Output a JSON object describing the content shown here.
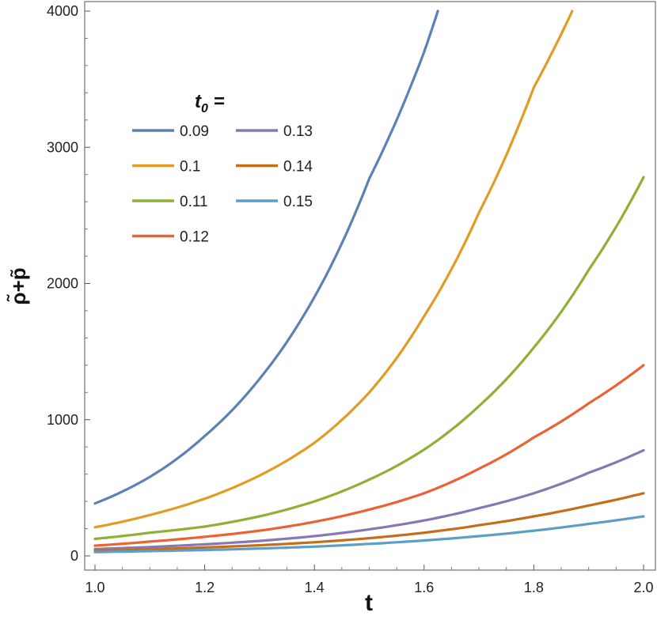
{
  "chart_data": {
    "type": "line",
    "xlabel": "t",
    "ylabel": "ρ̃+p̃",
    "xlim": [
      1.0,
      2.0
    ],
    "ylim": [
      0,
      4000
    ],
    "xticks": [
      "1.0",
      "1.2",
      "1.4",
      "1.6",
      "1.8",
      "2.0"
    ],
    "yticks": [
      "0",
      "1000",
      "2000",
      "3000",
      "4000"
    ],
    "grid": false,
    "legend": {
      "title": "t",
      "title_sub": "0",
      "title_suffix": " =",
      "placement": "upper-left",
      "columns": 2
    },
    "series": [
      {
        "name": "0.09",
        "color": "#5e81b5",
        "x": [
          1.0,
          1.1,
          1.2,
          1.3,
          1.4,
          1.5,
          1.6,
          1.625
        ],
        "y": [
          385,
          580,
          880,
          1300,
          1900,
          2770,
          3700,
          4000
        ]
      },
      {
        "name": "0.1",
        "color": "#e19c24",
        "x": [
          1.0,
          1.1,
          1.2,
          1.3,
          1.4,
          1.5,
          1.6,
          1.7,
          1.8,
          1.87
        ],
        "y": [
          210,
          300,
          420,
          590,
          830,
          1200,
          1760,
          2520,
          3440,
          4000
        ]
      },
      {
        "name": "0.11",
        "color": "#8fb032",
        "x": [
          1.0,
          1.1,
          1.2,
          1.3,
          1.4,
          1.5,
          1.6,
          1.7,
          1.8,
          1.9,
          2.0
        ],
        "y": [
          125,
          170,
          215,
          290,
          400,
          560,
          780,
          1100,
          1530,
          2100,
          2780
        ]
      },
      {
        "name": "0.12",
        "color": "#eb6235",
        "x": [
          1.0,
          1.1,
          1.2,
          1.3,
          1.4,
          1.5,
          1.6,
          1.7,
          1.8,
          1.9,
          2.0
        ],
        "y": [
          75,
          105,
          140,
          185,
          250,
          340,
          460,
          640,
          870,
          1120,
          1400
        ]
      },
      {
        "name": "0.13",
        "color": "#8778b3",
        "x": [
          1.0,
          1.1,
          1.2,
          1.3,
          1.4,
          1.5,
          1.6,
          1.7,
          1.8,
          1.9,
          2.0
        ],
        "y": [
          50,
          65,
          85,
          110,
          145,
          195,
          260,
          350,
          460,
          610,
          775
        ]
      },
      {
        "name": "0.14",
        "color": "#c56e1a",
        "x": [
          1.0,
          1.1,
          1.2,
          1.3,
          1.4,
          1.5,
          1.6,
          1.7,
          1.8,
          1.9,
          2.0
        ],
        "y": [
          38,
          48,
          62,
          78,
          100,
          130,
          170,
          225,
          290,
          370,
          460
        ]
      },
      {
        "name": "0.15",
        "color": "#5d9ec7",
        "x": [
          1.0,
          1.1,
          1.2,
          1.3,
          1.4,
          1.5,
          1.6,
          1.7,
          1.8,
          1.9,
          2.0
        ],
        "y": [
          28,
          35,
          43,
          54,
          68,
          88,
          113,
          145,
          185,
          235,
          290
        ]
      }
    ]
  }
}
